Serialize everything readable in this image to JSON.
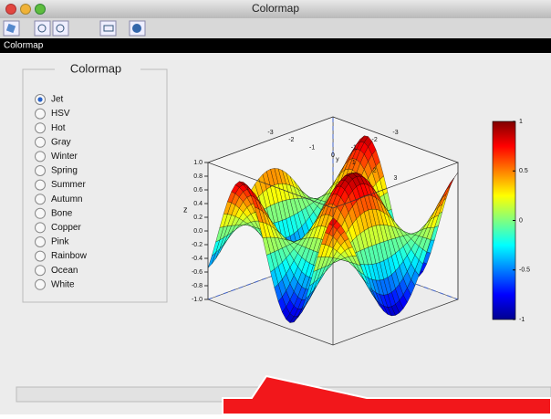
{
  "window": {
    "title": "Colormap"
  },
  "panel_header": "Colormap",
  "colormap_group": {
    "title": "Colormap",
    "options": [
      "Jet",
      "HSV",
      "Hot",
      "Gray",
      "Winter",
      "Spring",
      "Summer",
      "Autumn",
      "Bone",
      "Copper",
      "Pink",
      "Rainbow",
      "Ocean",
      "White"
    ],
    "selected": 0
  },
  "plot": {
    "z_label": "z",
    "z_ticks": [
      "1.0",
      "0.8",
      "0.6",
      "0.4",
      "0.2",
      "0.0",
      "-0.2",
      "-0.4",
      "-0.6",
      "-0.8",
      "-1.0"
    ],
    "y_label": "y",
    "y_ticks": [
      "-3",
      "-2",
      "-1"
    ],
    "x_ticks": [
      "-3",
      "-2",
      "-1",
      "0",
      "1",
      "2",
      "3"
    ],
    "colorbar_ticks": [
      "1",
      "0.5",
      "0",
      "-0.5",
      "-1"
    ]
  }
}
